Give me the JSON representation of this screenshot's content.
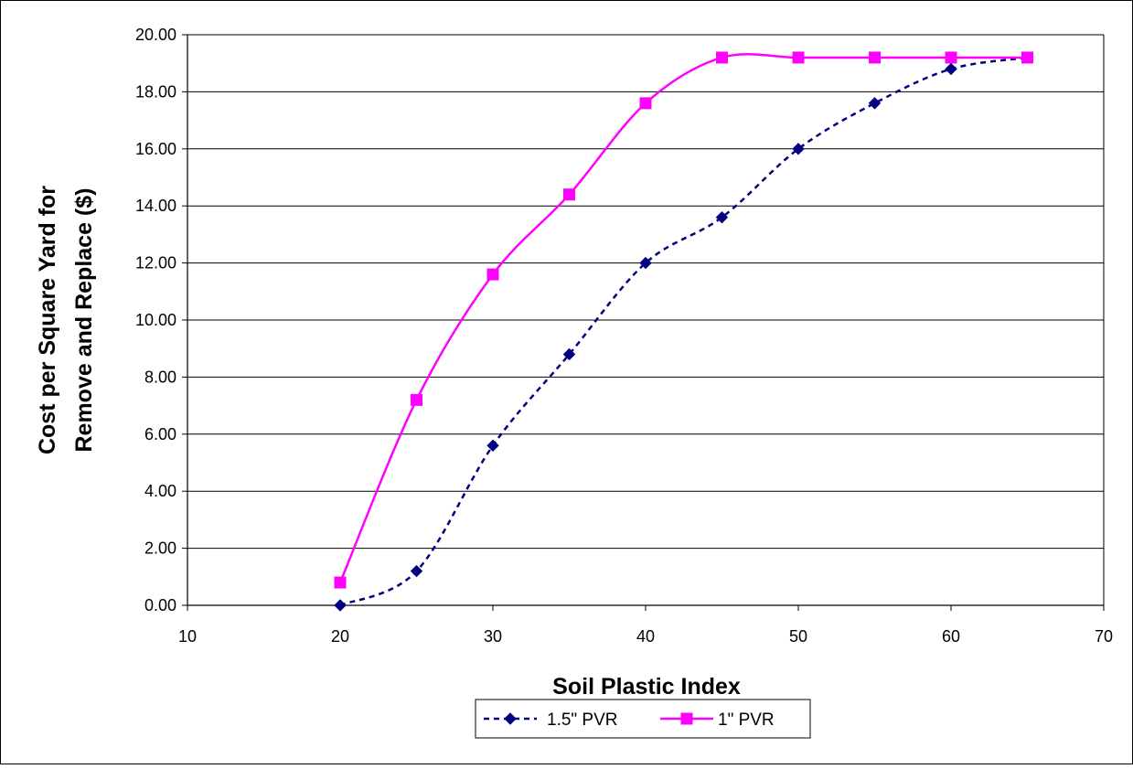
{
  "chart_data": {
    "type": "line",
    "title": "",
    "xlabel": "Soil Plastic Index",
    "ylabel": [
      "Cost per Square Yard for",
      "Remove and Replace ($)"
    ],
    "xlim": [
      10,
      70
    ],
    "ylim": [
      0,
      20
    ],
    "x_ticks": [
      10,
      20,
      30,
      40,
      50,
      60,
      70
    ],
    "y_ticks": [
      "0.00",
      "2.00",
      "4.00",
      "6.00",
      "8.00",
      "10.00",
      "12.00",
      "14.00",
      "16.00",
      "18.00",
      "20.00"
    ],
    "grid": "horizontal major",
    "legend_position": "bottom",
    "smoothed": true,
    "series": [
      {
        "name": "1.5\" PVR",
        "color": "#000080",
        "line_style": "dashed",
        "marker": "diamond",
        "x": [
          20,
          25,
          30,
          35,
          40,
          45,
          50,
          55,
          60,
          65
        ],
        "y": [
          0.0,
          1.2,
          5.6,
          8.8,
          12.0,
          13.6,
          16.0,
          17.6,
          18.8,
          19.2
        ]
      },
      {
        "name": "1\" PVR",
        "color": "#FF00FF",
        "line_style": "solid",
        "marker": "square",
        "x": [
          20,
          25,
          30,
          35,
          40,
          45,
          50,
          55,
          60,
          65
        ],
        "y": [
          0.8,
          7.2,
          11.6,
          14.4,
          17.6,
          19.2,
          19.2,
          19.2,
          19.2,
          19.2
        ]
      }
    ]
  }
}
